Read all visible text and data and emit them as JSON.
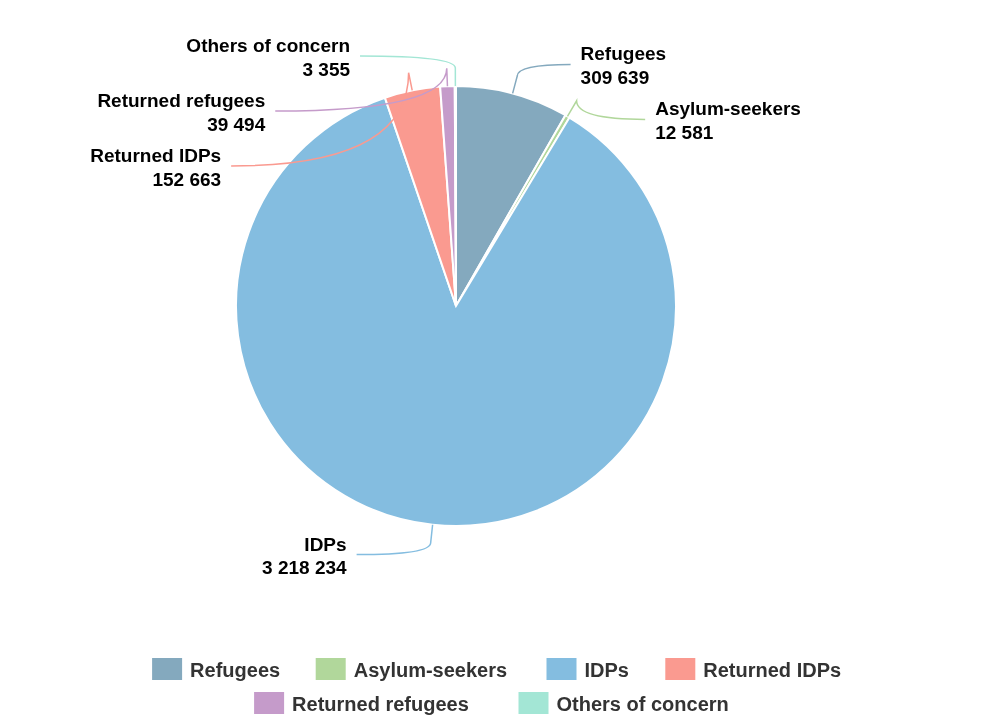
{
  "chart_data": {
    "type": "pie",
    "categories": [
      "Refugees",
      "Asylum-seekers",
      "IDPs",
      "Returned IDPs",
      "Returned refugees",
      "Others of concern"
    ],
    "values": [
      309639,
      12581,
      3218234,
      152663,
      39494,
      3355
    ],
    "colors": [
      "#84a9be",
      "#b1d79b",
      "#84bde0",
      "#fa9a90",
      "#c59bca",
      "#a3e6d5"
    ],
    "data_labels": true,
    "legend": "bottom"
  }
}
